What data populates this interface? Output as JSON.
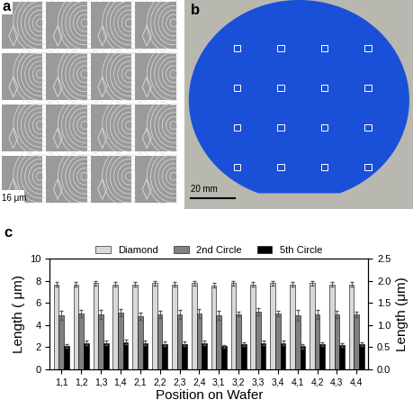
{
  "chart_data": {
    "type": "bar",
    "categories": [
      "1,1",
      "1,2",
      "1,3",
      "1,4",
      "2,1",
      "2,2",
      "2,3",
      "2,4",
      "3,1",
      "3,2",
      "3,3",
      "3,4",
      "4,1",
      "4,2",
      "4,3",
      "4,4"
    ],
    "x_label": "Position on Wafer",
    "y_label": "Length ( μm)",
    "y2_label": "Length (μm)",
    "ylim": [
      0,
      10
    ],
    "yticks": [
      0,
      2,
      4,
      6,
      8,
      10
    ],
    "y2lim": [
      0,
      2.5
    ],
    "y2ticks": [
      {
        "value": 0,
        "label": "0.0"
      },
      {
        "value": 0.5,
        "label": "0.5"
      },
      {
        "value": 1.0,
        "label": "1.0"
      },
      {
        "value": 1.5,
        "label": "1.5"
      },
      {
        "value": 2.0,
        "label": "2.0"
      },
      {
        "value": 2.5,
        "label": "2.5"
      }
    ],
    "legend": "upper center",
    "series": [
      {
        "name": "Diamond",
        "color": "#d9d9d9",
        "axis": "y",
        "values": [
          7.7,
          7.7,
          7.8,
          7.7,
          7.7,
          7.8,
          7.7,
          7.8,
          7.6,
          7.8,
          7.7,
          7.8,
          7.7,
          7.8,
          7.7,
          7.7
        ],
        "errors": [
          0.2,
          0.2,
          0.2,
          0.2,
          0.2,
          0.2,
          0.2,
          0.2,
          0.2,
          0.2,
          0.2,
          0.2,
          0.2,
          0.2,
          0.2,
          0.2
        ]
      },
      {
        "name": "2nd Circle",
        "color": "#808080",
        "axis": "y2",
        "values": [
          1.22,
          1.27,
          1.25,
          1.28,
          1.2,
          1.25,
          1.25,
          1.27,
          1.22,
          1.25,
          1.3,
          1.27,
          1.23,
          1.25,
          1.25,
          1.25
        ],
        "errors": [
          0.1,
          0.08,
          0.1,
          0.08,
          0.08,
          0.08,
          0.1,
          0.1,
          0.1,
          0.05,
          0.08,
          0.06,
          0.12,
          0.1,
          0.08,
          0.06
        ]
      },
      {
        "name": "5th Circle",
        "color": "#000000",
        "axis": "y2",
        "values": [
          0.53,
          0.6,
          0.6,
          0.62,
          0.6,
          0.58,
          0.58,
          0.6,
          0.52,
          0.57,
          0.6,
          0.6,
          0.52,
          0.57,
          0.55,
          0.57
        ],
        "errors": [
          0.04,
          0.06,
          0.06,
          0.05,
          0.05,
          0.06,
          0.06,
          0.05,
          0.04,
          0.05,
          0.05,
          0.05,
          0.05,
          0.05,
          0.05,
          0.05
        ]
      }
    ]
  },
  "panels": [
    {
      "label": "a",
      "scale_bar": "16 μm"
    },
    {
      "label": "b",
      "scale_bar": "20 mm"
    },
    {
      "label": "c"
    }
  ]
}
